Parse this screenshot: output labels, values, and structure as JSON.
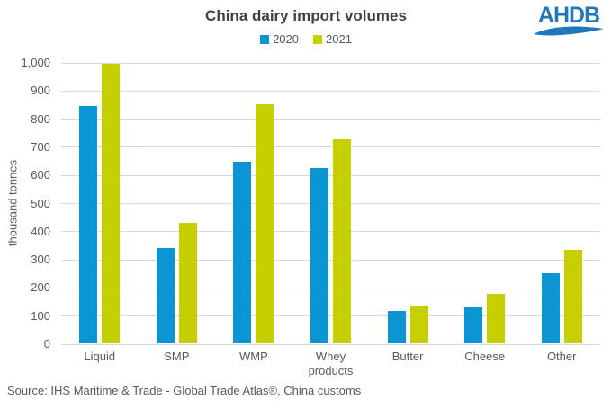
{
  "title": "China dairy import volumes",
  "logo": {
    "text": "AHDB",
    "color": "#2177BD"
  },
  "source": "Source: IHS Maritime & Trade - Global Trade Atlas®, China customs",
  "colors": {
    "series_2020": "#0B95D3",
    "series_2021": "#C6D000",
    "gridline": "#D9D9D9",
    "text_gray": "#595959",
    "title_gray": "#404040",
    "logo_blue": "#2177BD"
  },
  "chart_data": {
    "type": "bar",
    "title": "China dairy import volumes",
    "categories": [
      "Liquid",
      "SMP",
      "WMP",
      "Whey products",
      "Butter",
      "Cheese",
      "Other"
    ],
    "series": [
      {
        "name": "2020",
        "color": "#0B95D3",
        "values": [
          845,
          338,
          645,
          623,
          115,
          128,
          250
        ]
      },
      {
        "name": "2021",
        "color": "#C6D000",
        "values": [
          995,
          428,
          850,
          725,
          131,
          176,
          333
        ]
      }
    ],
    "xlabel": "",
    "ylabel": "thousand tonnes",
    "ylim": [
      0,
      1000
    ],
    "ytick_step": 100,
    "grid": true,
    "legend_position": "top-center"
  }
}
